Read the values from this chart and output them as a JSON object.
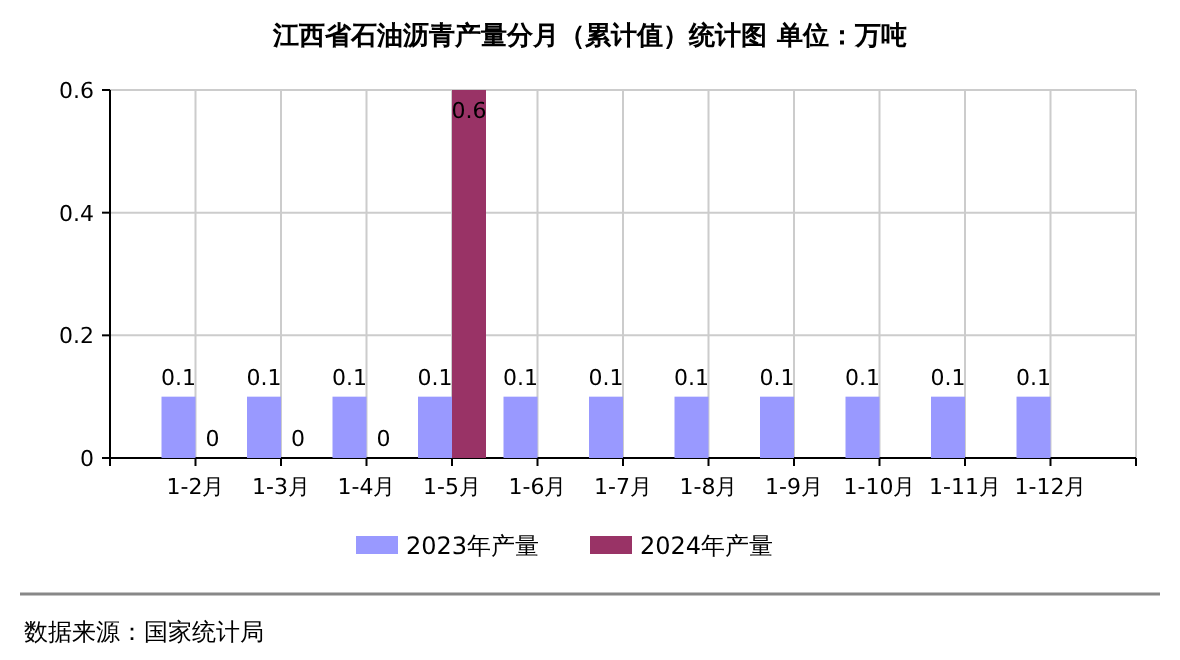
{
  "chart_data": {
    "type": "bar",
    "title": "江西省石油沥青产量分月（累计值）统计图 单位：万吨",
    "categories": [
      "1-2月",
      "1-3月",
      "1-4月",
      "1-5月",
      "1-6月",
      "1-7月",
      "1-8月",
      "1-9月",
      "1-10月",
      "1-11月",
      "1-12月"
    ],
    "series": [
      {
        "name": "2023年产量",
        "color": "#9999ff",
        "values": [
          0.1,
          0.1,
          0.1,
          0.1,
          0.1,
          0.1,
          0.1,
          0.1,
          0.1,
          0.1,
          0.1
        ]
      },
      {
        "name": "2024年产量",
        "color": "#993366",
        "values": [
          0,
          0,
          0,
          0.6,
          null,
          null,
          null,
          null,
          null,
          null,
          null
        ]
      }
    ],
    "ylim": [
      0,
      0.6
    ],
    "yticks": [
      {
        "value": 0,
        "label": "0"
      },
      {
        "value": 0.2,
        "label": "0.2"
      },
      {
        "value": 0.4,
        "label": "0.4"
      },
      {
        "value": 0.6,
        "label": "0.6"
      }
    ],
    "grid": true,
    "legend": "bottom",
    "data_labels": true,
    "annotations": [
      "数据来源：国家统计局"
    ]
  }
}
